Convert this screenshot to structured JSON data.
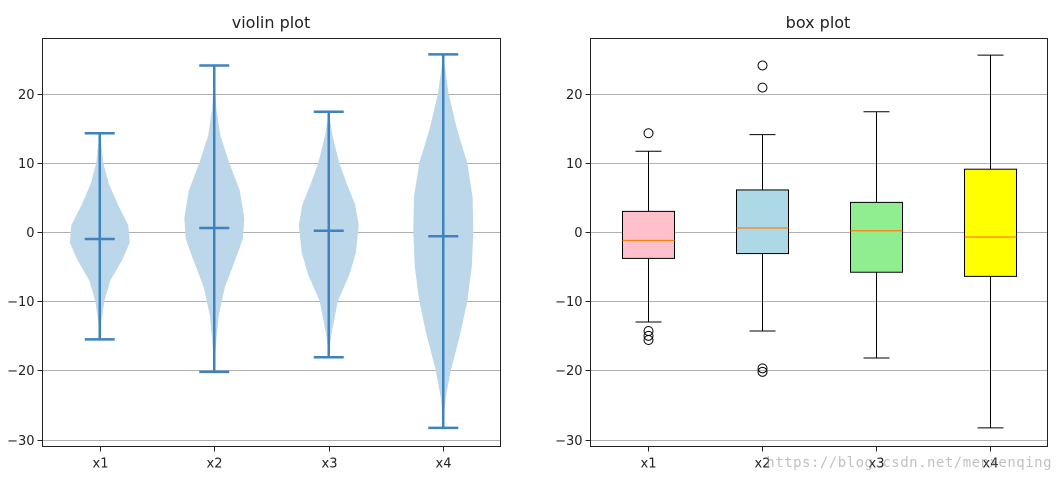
{
  "chart_data": [
    {
      "type": "violin",
      "title": "violin plot",
      "xlabel": "",
      "ylabel": "",
      "categories": [
        "x1",
        "x2",
        "x3",
        "x4"
      ],
      "ylim": [
        -31,
        28
      ],
      "yticks": [
        -30,
        -20,
        -10,
        0,
        10,
        20
      ],
      "grid": "horizontal",
      "violins": [
        {
          "category": "x1",
          "min": -15.5,
          "max": 14.3,
          "mean": -1.0,
          "density": [
            [
              -15.5,
              0.0
            ],
            [
              -13,
              0.05
            ],
            [
              -10,
              0.15
            ],
            [
              -7,
              0.35
            ],
            [
              -4,
              0.75
            ],
            [
              -1.5,
              1.0
            ],
            [
              1,
              0.95
            ],
            [
              4,
              0.6
            ],
            [
              7,
              0.3
            ],
            [
              10,
              0.12
            ],
            [
              13,
              0.04
            ],
            [
              14.3,
              0.0
            ]
          ]
        },
        {
          "category": "x2",
          "min": -20.2,
          "max": 24.1,
          "mean": 0.6,
          "density": [
            [
              -20.2,
              0.0
            ],
            [
              -16,
              0.06
            ],
            [
              -12,
              0.15
            ],
            [
              -8,
              0.35
            ],
            [
              -4,
              0.7
            ],
            [
              -1,
              0.95
            ],
            [
              2,
              1.0
            ],
            [
              6,
              0.85
            ],
            [
              10,
              0.5
            ],
            [
              14,
              0.2
            ],
            [
              18,
              0.07
            ],
            [
              22,
              0.02
            ],
            [
              24.1,
              0.0
            ]
          ]
        },
        {
          "category": "x3",
          "min": -18.1,
          "max": 17.4,
          "mean": 0.2,
          "density": [
            [
              -18.1,
              0.0
            ],
            [
              -15,
              0.08
            ],
            [
              -10,
              0.3
            ],
            [
              -6,
              0.7
            ],
            [
              -3,
              0.9
            ],
            [
              1,
              1.0
            ],
            [
              4,
              0.88
            ],
            [
              7,
              0.6
            ],
            [
              10,
              0.35
            ],
            [
              14,
              0.12
            ],
            [
              17.4,
              0.0
            ]
          ]
        },
        {
          "category": "x4",
          "min": -28.3,
          "max": 25.7,
          "mean": -0.6,
          "density": [
            [
              -28.3,
              0.0
            ],
            [
              -24,
              0.08
            ],
            [
              -20,
              0.25
            ],
            [
              -15,
              0.55
            ],
            [
              -10,
              0.8
            ],
            [
              -5,
              0.95
            ],
            [
              0,
              1.0
            ],
            [
              5,
              0.98
            ],
            [
              10,
              0.8
            ],
            [
              15,
              0.45
            ],
            [
              20,
              0.18
            ],
            [
              24,
              0.05
            ],
            [
              25.7,
              0.0
            ]
          ]
        }
      ],
      "colors": {
        "body": "#bcd6ea",
        "lines": "#3e82bf"
      }
    },
    {
      "type": "box",
      "title": "box plot",
      "xlabel": "",
      "ylabel": "",
      "categories": [
        "x1",
        "x2",
        "x3",
        "x4"
      ],
      "ylim": [
        -31,
        28
      ],
      "yticks": [
        -30,
        -20,
        -10,
        0,
        10,
        20
      ],
      "grid": "horizontal",
      "boxes": [
        {
          "category": "x1",
          "whisker_low": -13.0,
          "q1": -3.8,
          "median": -1.2,
          "q3": 3.0,
          "whisker_high": 11.7,
          "fliers": [
            14.3,
            -14.3,
            -15.0,
            -15.6
          ],
          "color": "#ffc0cb"
        },
        {
          "category": "x2",
          "whisker_low": -14.3,
          "q1": -3.1,
          "median": 0.6,
          "q3": 6.1,
          "whisker_high": 14.1,
          "fliers": [
            24.1,
            20.9,
            -19.7,
            -20.2
          ],
          "color": "#add8e6"
        },
        {
          "category": "x3",
          "whisker_low": -18.2,
          "q1": -5.8,
          "median": 0.2,
          "q3": 4.3,
          "whisker_high": 17.4,
          "fliers": [],
          "color": "#90ee90"
        },
        {
          "category": "x4",
          "whisker_low": -28.3,
          "q1": -6.4,
          "median": -0.7,
          "q3": 9.1,
          "whisker_high": 25.6,
          "fliers": [],
          "color": "#ffff00"
        }
      ],
      "median_color": "#ff7f0e"
    }
  ],
  "watermark": "https://blog.csdn.net/menxenqing"
}
